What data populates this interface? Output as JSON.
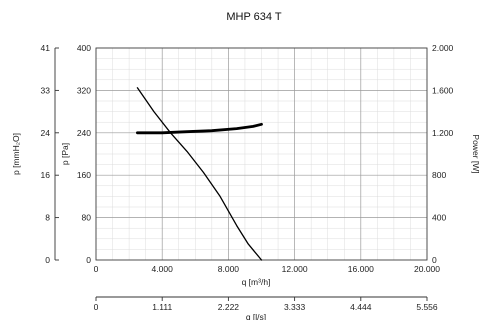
{
  "chart_data": {
    "type": "line",
    "title": "MHP 634 T",
    "x_axis": {
      "label": "q [m³/h]",
      "range": [
        0,
        20000
      ],
      "ticks": [
        "0",
        "4.000",
        "8.000",
        "12.000",
        "16.000",
        "20.000"
      ]
    },
    "x_axis_secondary": {
      "label": "q [l/s]",
      "range": [
        0,
        5556
      ],
      "ticks": [
        "0",
        "1.111",
        "2.222",
        "3.333",
        "4.444",
        "5.556"
      ]
    },
    "y_axis_pa": {
      "label": "p [Pa]",
      "range": [
        0,
        400
      ],
      "ticks": [
        "0",
        "80",
        "160",
        "240",
        "320",
        "400"
      ]
    },
    "y_axis_mmh2o": {
      "label": "p [mmH₂O]",
      "range": [
        0,
        41
      ],
      "ticks": [
        "0",
        "8",
        "16",
        "24",
        "33",
        "41"
      ]
    },
    "y_axis_power": {
      "label": "Power [W]",
      "range": [
        0,
        2000
      ],
      "ticks": [
        "0",
        "400",
        "800",
        "1.200",
        "1.600",
        "2.000"
      ]
    },
    "grid": true,
    "series": [
      {
        "axis": "pressure",
        "x": [
          2500,
          3500,
          4500,
          5500,
          6500,
          7500,
          8500,
          9200,
          10000
        ],
        "y": [
          325,
          280,
          240,
          205,
          165,
          120,
          65,
          30,
          0
        ]
      },
      {
        "axis": "power",
        "x": [
          2500,
          4000,
          5500,
          7000,
          8500,
          9500,
          10000
        ],
        "y": [
          1200,
          1200,
          1210,
          1220,
          1240,
          1260,
          1280
        ]
      }
    ],
    "colors": {
      "curve": "#000000",
      "grid_major": "#9a9a9a",
      "grid_minor": "#dcdcdc"
    }
  }
}
